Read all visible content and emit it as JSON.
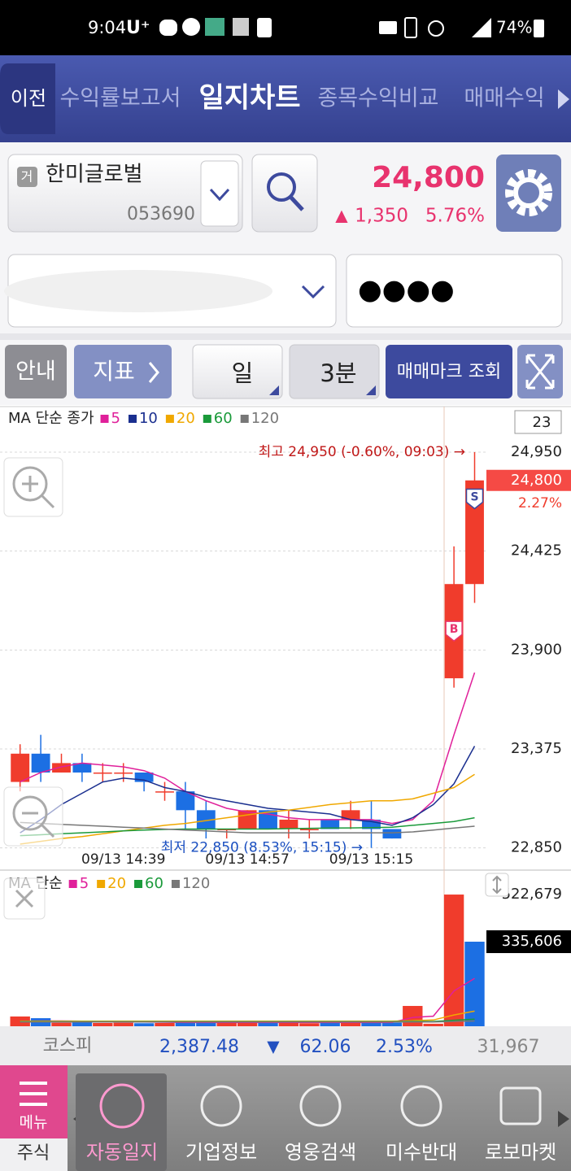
{
  "status_bar": {
    "time": "9:04",
    "carrier": "U⁺",
    "battery": "74%"
  },
  "nav": {
    "back": "이전",
    "tabs": [
      "수익률보고서",
      "일지차트",
      "종목수익비교",
      "매매수익"
    ]
  },
  "stock": {
    "badge": "거",
    "name": "한미글로벌",
    "code": "053690",
    "price": "24,800",
    "change_mark": "▲",
    "change": "1,350",
    "change_pct": "5.76%"
  },
  "account": {
    "password": "●●●●"
  },
  "toolbar": {
    "guide": "안내",
    "indicator": "지표",
    "period": "일",
    "interval": "3분",
    "trade_marks": "매매마크 조회"
  },
  "chart_data": [
    {
      "type": "candlestick",
      "legend_title": "MA 단순 종가",
      "count_label": "23",
      "categories": [
        null,
        null,
        null,
        null,
        null,
        "09/13 14:39",
        null,
        null,
        null,
        null,
        null,
        "09/13 14:57",
        null,
        null,
        null,
        null,
        null,
        "09/13 15:15",
        null,
        null,
        null,
        null,
        null
      ],
      "open": [
        23200,
        23350,
        23250,
        23300,
        23250,
        23250,
        23250,
        23150,
        23150,
        23050,
        22950,
        22950,
        23050,
        22950,
        22950,
        23000,
        23000,
        23000,
        22950,
        null,
        null,
        23750,
        24250
      ],
      "high": [
        23400,
        23450,
        23350,
        23350,
        23300,
        23300,
        23250,
        23200,
        23200,
        23100,
        22950,
        23050,
        23050,
        23050,
        23000,
        23000,
        23100,
        23100,
        22950,
        null,
        null,
        24450,
        24950
      ],
      "low": [
        23150,
        23200,
        23250,
        23200,
        23200,
        23200,
        23150,
        23100,
        22950,
        22900,
        22900,
        22950,
        22950,
        22900,
        22900,
        22950,
        22950,
        22850,
        22900,
        null,
        null,
        23700,
        24150
      ],
      "close": [
        23350,
        23250,
        23300,
        23250,
        23250,
        23250,
        23200,
        23150,
        23050,
        22950,
        22950,
        23050,
        22950,
        23000,
        22950,
        22950,
        23050,
        22950,
        22900,
        null,
        null,
        24250,
        24800
      ],
      "up_color": "#f03c2c",
      "down_color": "#1c6fe3",
      "series": [
        {
          "name": "5",
          "color": "#e0209a",
          "values": [
            23200,
            23250,
            23280,
            23300,
            23290,
            23280,
            23260,
            23220,
            23150,
            23100,
            23060,
            23040,
            23030,
            23010,
            23000,
            23000,
            23000,
            23000,
            22980,
            23000,
            23100,
            23450,
            23780
          ]
        },
        {
          "name": "10",
          "color": "#1a2f8f",
          "values": [
            22930,
            23000,
            23080,
            23140,
            23200,
            23220,
            23210,
            23170,
            23150,
            23120,
            23100,
            23080,
            23060,
            23050,
            23040,
            23030,
            23000,
            22990,
            22970,
            23010,
            23080,
            23190,
            23390
          ]
        },
        {
          "name": "20",
          "color": "#f0a800",
          "values": [
            22870,
            22885,
            22900,
            22910,
            22925,
            22940,
            22955,
            22970,
            22980,
            22995,
            23010,
            23025,
            23040,
            23050,
            23065,
            23080,
            23090,
            23100,
            23100,
            23110,
            23140,
            23170,
            23240
          ]
        },
        {
          "name": "60",
          "color": "#1a9a3a",
          "values": [
            22915,
            22920,
            22925,
            22930,
            22935,
            22940,
            22945,
            22948,
            22950,
            22950,
            22950,
            22950,
            22950,
            22952,
            22954,
            22955,
            22956,
            22958,
            22960,
            22970,
            22980,
            22990,
            23010
          ]
        },
        {
          "name": "120",
          "color": "#777777",
          "values": [
            22985,
            22980,
            22975,
            22970,
            22965,
            22960,
            22955,
            22950,
            22945,
            22940,
            22935,
            22930,
            22930,
            22930,
            22930,
            22930,
            22930,
            22930,
            22930,
            22935,
            22945,
            22955,
            22965
          ]
        }
      ],
      "ylim": [
        22840,
        25170
      ],
      "yticks": [
        {
          "value": 22850,
          "label": "22,850"
        },
        {
          "value": 23375,
          "label": "23,375"
        },
        {
          "value": 23900,
          "label": "23,900"
        },
        {
          "value": 24425,
          "label": "24,425"
        },
        {
          "value": 24950,
          "label": "24,950"
        }
      ],
      "grid": true,
      "annotations": {
        "high": "최고 24,950 (-0.60%, 09:03) →",
        "low": "최저 22,850 (8.53%, 15:15) →"
      },
      "current": {
        "value": 24800,
        "label": "24,800",
        "change": "2.27%"
      },
      "trade_marks": [
        "B",
        "S"
      ]
    },
    {
      "type": "bar",
      "legend_title": "MA 단순",
      "values": [
        38700,
        32000,
        14000,
        15000,
        13000,
        14000,
        12000,
        13000,
        16000,
        15000,
        14000,
        16000,
        15000,
        13000,
        12000,
        14000,
        15000,
        13000,
        14000,
        80600,
        10000,
        522679,
        335606
      ],
      "colors": [
        "#f03c2c",
        "#1c6fe3",
        "#f03c2c",
        "#1c6fe3",
        "#f03c2c",
        "#f03c2c",
        "#1c6fe3",
        "#f03c2c",
        "#1c6fe3",
        "#1c6fe3",
        "#f03c2c",
        "#f03c2c",
        "#1c6fe3",
        "#f03c2c",
        "#f03c2c",
        "#1c6fe3",
        "#f03c2c",
        "#1c6fe3",
        "#1c6fe3",
        "#f03c2c",
        "#f03c2c",
        "#f03c2c",
        "#1c6fe3"
      ],
      "series": [
        {
          "name": "5",
          "color": "#e0209a",
          "values": [
            20000,
            21000,
            21000,
            20000,
            19000,
            18000,
            17000,
            16000,
            15000,
            15000,
            15000,
            15000,
            15000,
            15000,
            15000,
            15000,
            15000,
            15000,
            15000,
            35000,
            40000,
            140000,
            190000
          ]
        },
        {
          "name": "20",
          "color": "#f0a800",
          "values": [
            20000,
            20000,
            20000,
            20000,
            20000,
            20000,
            20000,
            20000,
            20000,
            20000,
            20000,
            20000,
            20000,
            20000,
            20000,
            20000,
            20000,
            20000,
            20000,
            22000,
            25000,
            45000,
            60000
          ]
        },
        {
          "name": "60",
          "color": "#1a9a3a",
          "values": [
            18000,
            18000,
            18000,
            18000,
            18000,
            18000,
            18000,
            18000,
            18000,
            18000,
            18000,
            18000,
            18000,
            18000,
            18000,
            18000,
            18000,
            18000,
            18000,
            19000,
            19000,
            24000,
            28000
          ]
        },
        {
          "name": "120",
          "color": "#777777",
          "values": [
            17000,
            17000,
            17000,
            17000,
            17000,
            17000,
            17000,
            17000,
            17000,
            17000,
            17000,
            17000,
            17000,
            17000,
            17000,
            17000,
            17000,
            17000,
            17000,
            17000,
            17000,
            19000,
            21000
          ]
        }
      ],
      "ylim": [
        0,
        610000
      ],
      "yticks": [
        {
          "value": 335606,
          "label": "335,606"
        },
        {
          "value": 522679,
          "label": "522,679"
        }
      ]
    }
  ],
  "index_bar": {
    "name": "코스피",
    "value": "2,387.48",
    "direction": "▼",
    "change": "62.06",
    "change_pct": "2.53%",
    "volume": "31,967"
  },
  "bottom_nav": {
    "menu": "메뉴",
    "section": "주식",
    "items": [
      "자동일지",
      "기업정보",
      "영웅검색",
      "미수반대",
      "로보마켓"
    ]
  }
}
